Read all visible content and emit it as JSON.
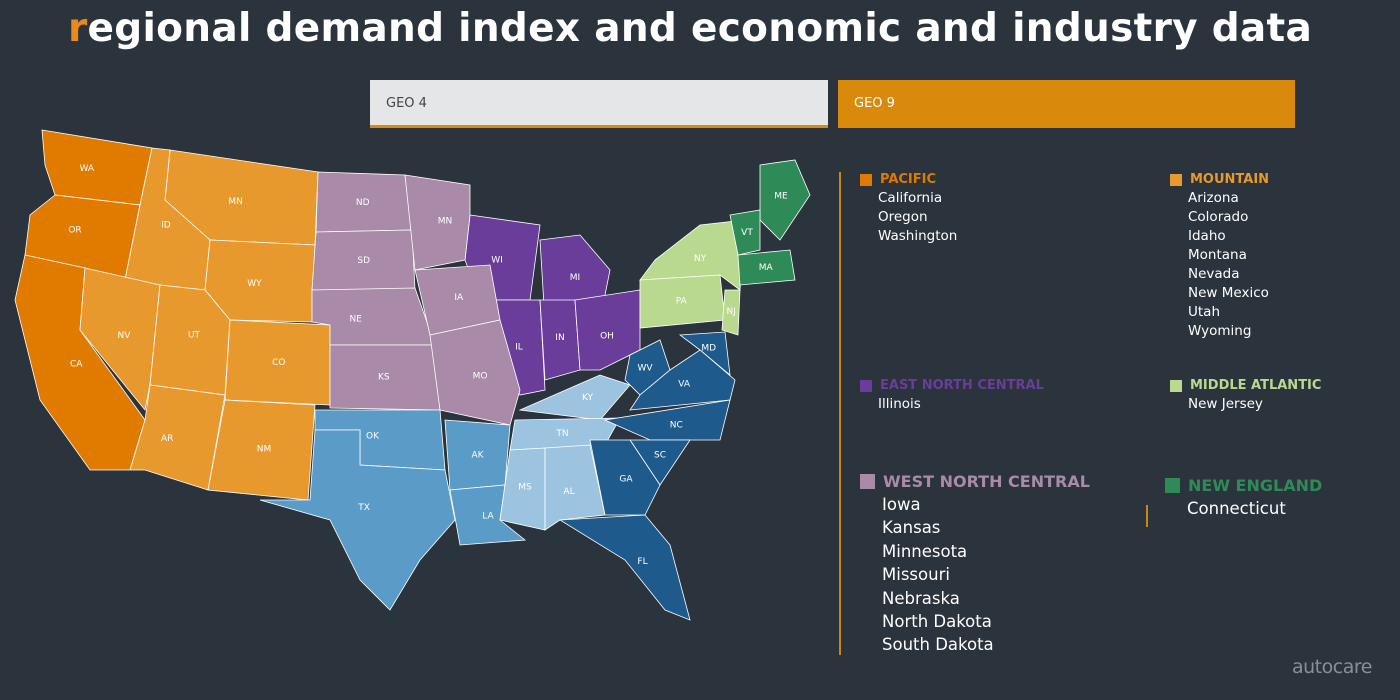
{
  "header": {
    "title": "regional demand index and economic and industry data"
  },
  "tabs": [
    "GEO 4",
    "GEO 9"
  ],
  "regions": [
    {
      "name": "PACIFIC",
      "color": "#e07b00",
      "states": [
        "WA",
        "OR",
        "CA"
      ],
      "items": [
        "California",
        "Oregon",
        "Washington"
      ]
    },
    {
      "name": "MOUNTAIN",
      "color": "#e8992e",
      "states": [
        "MN",
        "ID",
        "WY",
        "NV",
        "UT",
        "CO",
        "AR",
        "NM"
      ],
      "items": [
        "Arizona",
        "Colorado",
        "Idaho",
        "Montana",
        "Nevada",
        "New Mexico",
        "Utah",
        "Wyoming"
      ]
    },
    {
      "name": "EAST NORTH CENTRAL",
      "color": "#6a3d9a",
      "states": [
        "WI",
        "MI",
        "IL",
        "IN",
        "OH"
      ],
      "items": [
        "Illinois"
      ]
    },
    {
      "name": "MIDDLE ATLANTIC",
      "color": "#b9d98f",
      "states": [
        "NY",
        "PA",
        "NJ"
      ],
      "items": [
        "New Jersey"
      ]
    },
    {
      "name": "WEST NORTH CENTRAL",
      "color": "#a98aa8",
      "states": [
        "ND",
        "SD",
        "NE",
        "KS",
        "MN",
        "IA",
        "MO"
      ],
      "items": [
        "Iowa",
        "Kansas",
        "Minnesota",
        "Missouri",
        "Nebraska",
        "North Dakota",
        "South Dakota"
      ]
    },
    {
      "name": "NEW ENGLAND",
      "color": "#2e8b57",
      "states": [
        "ME",
        "VT",
        "MA"
      ],
      "items": [
        "Connecticut"
      ]
    },
    {
      "states": [
        "OK",
        "AK",
        "TX",
        "LA"
      ],
      "color": "#5b9bc8"
    },
    {
      "states": [
        "KY",
        "TN",
        "MS",
        "AL"
      ],
      "color": "#9cc4e0"
    },
    {
      "states": [
        "WV",
        "MD",
        "VA",
        "NC",
        "SC",
        "GA",
        "FL"
      ],
      "color": "#1f5a8c"
    }
  ],
  "logo": "autocare"
}
